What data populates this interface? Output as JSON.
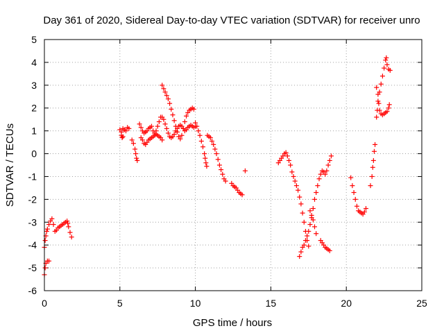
{
  "chart_data": {
    "type": "scatter",
    "title": "Day 361 of 2020, Sidereal Day-to-day VTEC variation (SDTVAR) for receiver unro",
    "xlabel": "GPS time / hours",
    "ylabel": "SDTVAR / TECUs",
    "xlim": [
      0,
      25
    ],
    "ylim": [
      -6,
      5
    ],
    "xticks": [
      "0",
      "5",
      "10",
      "15",
      "20",
      "25"
    ],
    "yticks": [
      "-6",
      "-5",
      "-4",
      "-3",
      "-2",
      "-1",
      "0",
      "1",
      "2",
      "3",
      "4",
      "5"
    ],
    "grid": true,
    "marker": "plus",
    "color": "#ff0000",
    "segments": [
      [
        [
          0.0,
          -5.3
        ],
        [
          0.05,
          -5.0
        ],
        [
          0.1,
          -4.8
        ],
        [
          0.2,
          -4.7
        ],
        [
          0.3,
          -4.7
        ]
      ],
      [
        [
          0.0,
          -4.1
        ],
        [
          0.05,
          -3.8
        ],
        [
          0.1,
          -3.6
        ],
        [
          0.15,
          -3.4
        ],
        [
          0.2,
          -3.3
        ],
        [
          0.3,
          -3.1
        ],
        [
          0.4,
          -2.95
        ],
        [
          0.5,
          -2.85
        ],
        [
          0.6,
          -3.1
        ],
        [
          0.7,
          -3.4
        ],
        [
          0.8,
          -3.35
        ],
        [
          0.9,
          -3.25
        ],
        [
          1.0,
          -3.2
        ],
        [
          1.1,
          -3.15
        ],
        [
          1.2,
          -3.1
        ],
        [
          1.3,
          -3.05
        ],
        [
          1.4,
          -3.0
        ],
        [
          1.5,
          -2.95
        ],
        [
          1.55,
          -3.05
        ],
        [
          1.6,
          -3.2
        ],
        [
          1.7,
          -3.45
        ],
        [
          1.8,
          -3.65
        ]
      ],
      [
        [
          5.0,
          1.05
        ],
        [
          5.1,
          0.95
        ],
        [
          5.2,
          1.1
        ],
        [
          5.3,
          1.05
        ],
        [
          5.4,
          1.0
        ],
        [
          5.5,
          1.15
        ],
        [
          5.6,
          1.1
        ]
      ],
      [
        [
          5.1,
          0.8
        ],
        [
          5.15,
          0.7
        ],
        [
          5.2,
          0.75
        ]
      ],
      [
        [
          5.8,
          0.6
        ],
        [
          5.9,
          0.45
        ],
        [
          6.0,
          0.2
        ],
        [
          6.05,
          0.0
        ],
        [
          6.1,
          -0.2
        ],
        [
          6.15,
          -0.3
        ]
      ],
      [
        [
          6.3,
          1.3
        ],
        [
          6.4,
          1.15
        ],
        [
          6.5,
          1.0
        ],
        [
          6.6,
          0.9
        ],
        [
          6.7,
          0.95
        ],
        [
          6.8,
          1.0
        ],
        [
          6.9,
          1.1
        ],
        [
          7.0,
          1.15
        ],
        [
          7.1,
          1.2
        ],
        [
          7.2,
          1.0
        ],
        [
          7.3,
          0.9
        ],
        [
          7.4,
          1.0
        ],
        [
          7.5,
          1.2
        ],
        [
          7.6,
          1.4
        ],
        [
          7.7,
          1.6
        ],
        [
          7.8,
          1.6
        ],
        [
          7.9,
          1.5
        ],
        [
          8.0,
          1.3
        ],
        [
          8.1,
          1.1
        ],
        [
          8.2,
          0.9
        ],
        [
          8.3,
          0.75
        ],
        [
          8.4,
          0.7
        ],
        [
          8.5,
          0.75
        ],
        [
          8.6,
          0.85
        ],
        [
          8.7,
          1.0
        ],
        [
          8.8,
          1.1
        ],
        [
          8.9,
          1.2
        ],
        [
          9.0,
          1.25
        ],
        [
          9.1,
          1.2
        ],
        [
          9.2,
          1.1
        ],
        [
          9.3,
          1.0
        ],
        [
          9.4,
          1.05
        ],
        [
          9.5,
          1.15
        ],
        [
          9.6,
          1.2
        ],
        [
          9.7,
          1.25
        ],
        [
          9.8,
          1.2
        ],
        [
          9.9,
          1.15
        ],
        [
          10.0,
          1.2
        ]
      ],
      [
        [
          6.4,
          0.7
        ],
        [
          6.5,
          0.6
        ],
        [
          6.6,
          0.45
        ],
        [
          6.7,
          0.4
        ],
        [
          6.8,
          0.5
        ],
        [
          6.9,
          0.6
        ],
        [
          7.0,
          0.65
        ],
        [
          7.1,
          0.7
        ],
        [
          7.2,
          0.75
        ],
        [
          7.3,
          0.8
        ],
        [
          7.4,
          0.85
        ],
        [
          7.5,
          0.8
        ],
        [
          7.6,
          0.75
        ],
        [
          7.7,
          0.7
        ],
        [
          7.8,
          0.6
        ]
      ],
      [
        [
          7.8,
          3.0
        ],
        [
          7.9,
          2.85
        ],
        [
          8.0,
          2.7
        ],
        [
          8.1,
          2.55
        ],
        [
          8.2,
          2.4
        ],
        [
          8.3,
          2.2
        ],
        [
          8.4,
          1.95
        ],
        [
          8.5,
          1.7
        ],
        [
          8.6,
          1.45
        ],
        [
          8.7,
          1.2
        ],
        [
          8.8,
          0.95
        ],
        [
          8.9,
          0.75
        ],
        [
          9.0,
          0.65
        ],
        [
          9.1,
          0.8
        ],
        [
          9.2,
          1.1
        ],
        [
          9.3,
          1.4
        ],
        [
          9.4,
          1.65
        ],
        [
          9.5,
          1.8
        ],
        [
          9.6,
          1.9
        ],
        [
          9.7,
          1.95
        ],
        [
          9.8,
          2.0
        ],
        [
          9.9,
          1.95
        ]
      ],
      [
        [
          10.0,
          1.35
        ],
        [
          10.1,
          1.2
        ],
        [
          10.2,
          1.0
        ],
        [
          10.3,
          0.8
        ],
        [
          10.4,
          0.55
        ],
        [
          10.5,
          0.3
        ],
        [
          10.6,
          0.0
        ],
        [
          10.65,
          -0.2
        ],
        [
          10.7,
          -0.4
        ],
        [
          10.75,
          -0.55
        ]
      ],
      [
        [
          10.8,
          0.8
        ],
        [
          10.9,
          0.75
        ],
        [
          11.0,
          0.7
        ],
        [
          11.1,
          0.55
        ],
        [
          11.2,
          0.4
        ],
        [
          11.3,
          0.2
        ],
        [
          11.4,
          0.0
        ],
        [
          11.5,
          -0.25
        ],
        [
          11.6,
          -0.5
        ],
        [
          11.7,
          -0.7
        ],
        [
          11.8,
          -0.9
        ],
        [
          11.9,
          -1.1
        ],
        [
          12.0,
          -1.2
        ]
      ],
      [
        [
          12.4,
          -1.3
        ],
        [
          12.5,
          -1.4
        ],
        [
          12.6,
          -1.45
        ],
        [
          12.7,
          -1.5
        ],
        [
          12.8,
          -1.6
        ],
        [
          12.9,
          -1.7
        ],
        [
          13.0,
          -1.75
        ],
        [
          13.1,
          -1.8
        ]
      ],
      [
        [
          13.3,
          -0.75
        ]
      ],
      [
        [
          15.5,
          -0.4
        ],
        [
          15.6,
          -0.3
        ],
        [
          15.7,
          -0.2
        ],
        [
          15.8,
          -0.1
        ],
        [
          15.9,
          0.0
        ],
        [
          16.0,
          0.05
        ],
        [
          16.1,
          -0.1
        ],
        [
          16.2,
          -0.3
        ],
        [
          16.3,
          -0.5
        ],
        [
          16.4,
          -0.8
        ],
        [
          16.5,
          -1.0
        ],
        [
          16.6,
          -1.2
        ],
        [
          16.7,
          -1.4
        ],
        [
          16.8,
          -1.6
        ],
        [
          16.9,
          -1.9
        ],
        [
          17.0,
          -2.2
        ],
        [
          17.1,
          -2.6
        ],
        [
          17.2,
          -3.0
        ],
        [
          17.3,
          -3.4
        ],
        [
          17.4,
          -3.8
        ],
        [
          17.5,
          -4.05
        ]
      ],
      [
        [
          16.9,
          -4.5
        ],
        [
          17.0,
          -4.3
        ],
        [
          17.1,
          -4.1
        ],
        [
          17.2,
          -4.0
        ],
        [
          17.3,
          -3.8
        ],
        [
          17.4,
          -3.6
        ],
        [
          17.5,
          -3.4
        ],
        [
          17.6,
          -3.1
        ],
        [
          17.7,
          -2.8
        ],
        [
          17.8,
          -2.4
        ],
        [
          17.9,
          -2.0
        ],
        [
          18.0,
          -1.7
        ],
        [
          18.1,
          -1.4
        ],
        [
          18.2,
          -1.1
        ],
        [
          18.3,
          -0.9
        ],
        [
          18.4,
          -0.75
        ],
        [
          18.5,
          -0.8
        ],
        [
          18.6,
          -0.9
        ],
        [
          18.7,
          -0.75
        ],
        [
          18.8,
          -0.5
        ],
        [
          18.9,
          -0.3
        ],
        [
          19.0,
          -0.1
        ]
      ],
      [
        [
          17.6,
          -2.5
        ],
        [
          17.7,
          -2.7
        ],
        [
          17.8,
          -2.9
        ],
        [
          17.9,
          -3.2
        ],
        [
          18.0,
          -3.5
        ]
      ],
      [
        [
          18.3,
          -3.8
        ],
        [
          18.4,
          -3.9
        ],
        [
          18.5,
          -4.0
        ],
        [
          18.6,
          -4.1
        ],
        [
          18.7,
          -4.15
        ],
        [
          18.8,
          -4.2
        ],
        [
          18.9,
          -4.25
        ]
      ],
      [
        [
          20.3,
          -1.05
        ],
        [
          20.4,
          -1.4
        ],
        [
          20.5,
          -1.7
        ],
        [
          20.6,
          -2.0
        ],
        [
          20.7,
          -2.3
        ],
        [
          20.8,
          -2.5
        ],
        [
          20.9,
          -2.55
        ],
        [
          21.0,
          -2.6
        ],
        [
          21.1,
          -2.65
        ],
        [
          21.2,
          -2.55
        ],
        [
          21.3,
          -2.4
        ]
      ],
      [
        [
          21.6,
          -1.4
        ],
        [
          21.7,
          -1.0
        ],
        [
          21.75,
          -0.6
        ],
        [
          21.8,
          -0.3
        ],
        [
          21.85,
          0.1
        ],
        [
          21.9,
          0.4
        ]
      ],
      [
        [
          22.0,
          2.9
        ],
        [
          22.1,
          2.6
        ],
        [
          22.15,
          2.2
        ],
        [
          22.2,
          1.9
        ],
        [
          22.3,
          1.75
        ],
        [
          22.4,
          1.7
        ],
        [
          22.5,
          1.75
        ],
        [
          22.6,
          1.8
        ],
        [
          22.7,
          1.85
        ],
        [
          22.8,
          2.0
        ],
        [
          22.85,
          2.15
        ]
      ],
      [
        [
          22.0,
          1.6
        ],
        [
          22.05,
          1.9
        ],
        [
          22.1,
          2.3
        ],
        [
          22.2,
          2.7
        ],
        [
          22.3,
          3.05
        ],
        [
          22.4,
          3.4
        ],
        [
          22.5,
          3.75
        ],
        [
          22.6,
          4.1
        ],
        [
          22.65,
          4.2
        ],
        [
          22.7,
          3.9
        ],
        [
          22.8,
          3.7
        ],
        [
          22.9,
          3.65
        ]
      ]
    ]
  }
}
